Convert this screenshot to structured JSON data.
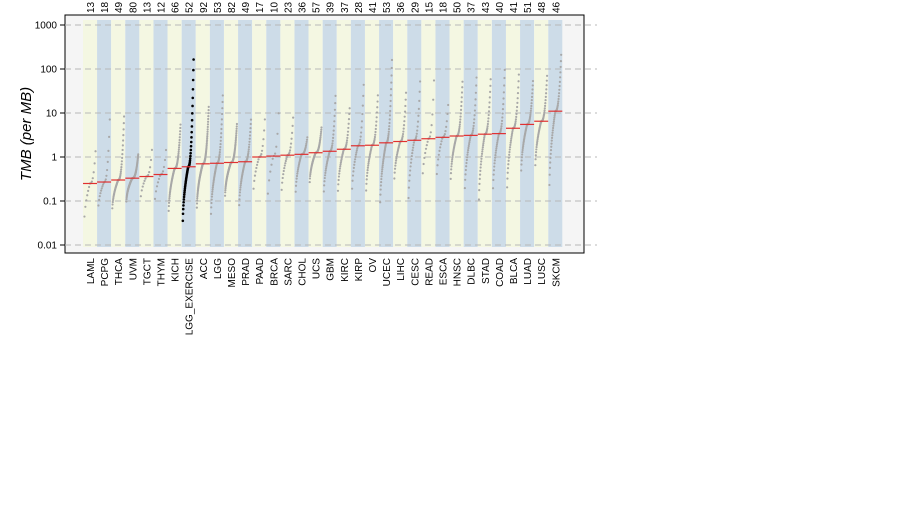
{
  "chart_data": {
    "type": "scatter",
    "ylabel": "TMB (per MB)",
    "y_scale": "log10",
    "ylim": [
      0.01,
      1000
    ],
    "y_ticks": [
      "0.01",
      "0.1",
      "1",
      "10",
      "100",
      "1000"
    ],
    "grid": "horizontal dashed",
    "categories": [
      "LAML",
      "PCPG",
      "THCA",
      "UVM",
      "TGCT",
      "THYM",
      "KICH",
      "LGG_EXERCISE",
      "ACC",
      "LGG",
      "MESO",
      "PRAD",
      "PAAD",
      "BRCA",
      "SARC",
      "CHOL",
      "UCS",
      "GBM",
      "KIRC",
      "KIRP",
      "OV",
      "UCEC",
      "LIHC",
      "CESC",
      "READ",
      "ESCA",
      "HNSC",
      "DLBC",
      "STAD",
      "COAD",
      "BLCA",
      "LUAD",
      "LUSC",
      "SKCM"
    ],
    "sample_counts": [
      "13",
      "18",
      "49",
      "80",
      "13",
      "12",
      "66",
      "52",
      "92",
      "53",
      "82",
      "49",
      "17",
      "10",
      "23",
      "36",
      "57",
      "39",
      "37",
      "28",
      "41",
      "53",
      "36",
      "29",
      "15",
      "18",
      "50",
      "37",
      "43",
      "40",
      "41",
      "51",
      "48",
      "46"
    ],
    "medians": [
      0.25,
      0.27,
      0.3,
      0.33,
      0.36,
      0.4,
      0.55,
      0.6,
      0.7,
      0.72,
      0.75,
      0.78,
      1.0,
      1.05,
      1.1,
      1.15,
      1.25,
      1.35,
      1.5,
      1.8,
      1.85,
      2.1,
      2.25,
      2.4,
      2.6,
      2.8,
      3.0,
      3.1,
      3.3,
      3.4,
      4.5,
      5.5,
      6.5,
      11.0
    ],
    "mins": [
      0.02,
      0.05,
      0.05,
      0.08,
      0.08,
      0.06,
      0.04,
      0.02,
      0.05,
      0.03,
      0.1,
      0.05,
      0.1,
      0.05,
      0.1,
      0.1,
      0.2,
      0.1,
      0.1,
      0.1,
      0.1,
      0.05,
      0.2,
      0.05,
      0.2,
      0.2,
      0.2,
      0.1,
      0.05,
      0.1,
      0.1,
      0.3,
      0.4,
      0.1
    ],
    "maxs": [
      2,
      12,
      10,
      1.2,
      2,
      2,
      6,
      220,
      15,
      30,
      6,
      8,
      10,
      20,
      10,
      3,
      5,
      30,
      15,
      60,
      30,
      200,
      35,
      70,
      100,
      20,
      60,
      80,
      70,
      120,
      90,
      60,
      80,
      250
    ],
    "highlighted_category": "LGG_EXERCISE",
    "colors": {
      "highlight_points": "#000000",
      "points": "#a8a8a8",
      "median": "#e03030",
      "band_a": "#f4f7e2",
      "band_b": "#cddce8",
      "panel": "#f5f5f5",
      "grid": "#b8b8b8"
    }
  }
}
